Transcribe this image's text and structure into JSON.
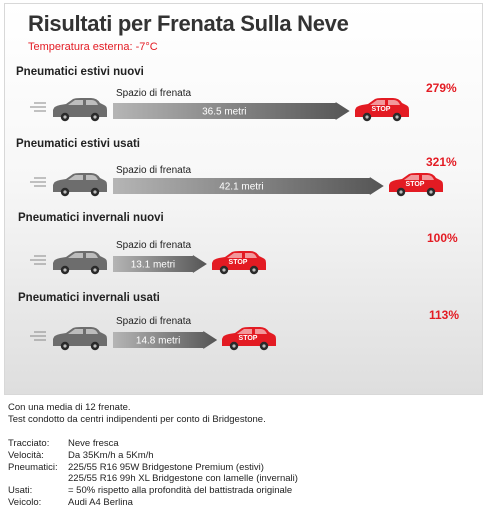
{
  "title": "Risultati per Frenata Sulla Neve",
  "subtitle": "Temperatura esterna: -7°C",
  "icons": {
    "car": "gray-car-icon",
    "stop_car": "red-stop-car-icon",
    "speed_lines": "speed-lines-icon"
  },
  "colors": {
    "accent": "#e31b23",
    "car_gray": "#6d6d6d",
    "bar_start": "#b5b5b5",
    "bar_end": "#555555"
  },
  "chart_data": {
    "type": "bar",
    "title": "Risultati per Frenata Sulla Neve",
    "subtitle": "Temperatura esterna: -7°C",
    "measure_label": "Spazio di frenata",
    "unit": "metri",
    "stop_label": "STOP",
    "categories": [
      "Pneumatici estivi nuovi",
      "Pneumatici estivi usati",
      "Pneumatici invernali nuovi",
      "Pneumatici invernali usati"
    ],
    "values": [
      36.5,
      42.1,
      13.1,
      14.8
    ],
    "value_labels": [
      "36.5 metri",
      "42.1 metri",
      "13.1 metri",
      "14.8 metri"
    ],
    "percentages": [
      "279%",
      "321%",
      "100%",
      "113%"
    ]
  },
  "footer": {
    "line1": "Con una media di 12 frenate.",
    "line2": "Test condotto da centri indipendenti per conto di Bridgestone."
  },
  "notes": [
    {
      "key": "Tracciato:",
      "value": "Neve fresca"
    },
    {
      "key": "Velocità:",
      "value": "Da 35Km/h a 5Km/h"
    },
    {
      "key": "Pneumatici:",
      "value": "225/55 R16 95W Bridgestone Premium (estivi)"
    },
    {
      "key": "",
      "value": "225/55 R16 99h XL Bridgestone con lamelle (invernali)"
    },
    {
      "key": "Usati:",
      "value": "= 50% rispetto alla profondità del battistrada originale"
    },
    {
      "key": "Veicolo:",
      "value": "Audi A4 Berlina"
    }
  ]
}
